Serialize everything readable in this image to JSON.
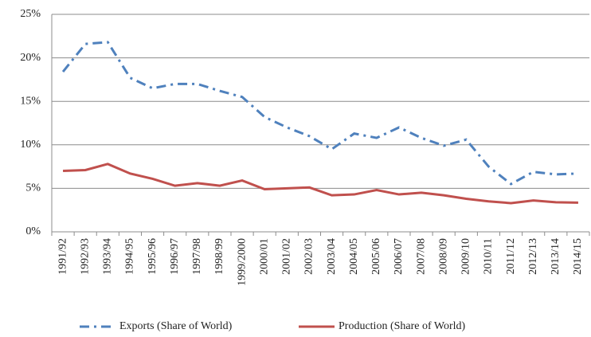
{
  "chart_data": {
    "type": "line",
    "categories": [
      "1991/92",
      "1992/93",
      "1993/94",
      "1994/95",
      "1995/96",
      "1996/97",
      "1997/98",
      "1998/99",
      "1999/2000",
      "2000/01",
      "2001/02",
      "2002/03",
      "2003/04",
      "2004/05",
      "2005/06",
      "2006/07",
      "2007/08",
      "2008/09",
      "2009/10",
      "2010/11",
      "2011/12",
      "2012/13",
      "2013/14",
      "2014/15"
    ],
    "series": [
      {
        "name": "Exports (Share of World)",
        "color": "#4f81bd",
        "dash": "dash-dot",
        "values": [
          18.4,
          21.6,
          21.8,
          17.7,
          16.5,
          17.0,
          17.0,
          16.2,
          15.5,
          13.2,
          12.0,
          11.0,
          9.5,
          11.3,
          10.8,
          12.0,
          10.8,
          9.9,
          10.6,
          7.5,
          5.5,
          6.9,
          6.6,
          6.7
        ]
      },
      {
        "name": "Production (Share of World)",
        "color": "#c0504d",
        "dash": "solid",
        "values": [
          7.0,
          7.1,
          7.8,
          6.7,
          6.1,
          5.3,
          5.6,
          5.3,
          5.9,
          4.9,
          5.0,
          5.1,
          4.2,
          4.3,
          4.8,
          4.3,
          4.5,
          4.2,
          3.8,
          3.5,
          3.3,
          3.6,
          3.4,
          3.35
        ]
      }
    ],
    "ylim": [
      0,
      25
    ],
    "yticks": [
      {
        "value": 0,
        "label": "0%"
      },
      {
        "value": 5,
        "label": "5%"
      },
      {
        "value": 10,
        "label": "10%"
      },
      {
        "value": 15,
        "label": "15%"
      },
      {
        "value": 20,
        "label": "20%"
      },
      {
        "value": 25,
        "label": "25%"
      }
    ],
    "grid": true,
    "legend": "bottom"
  }
}
